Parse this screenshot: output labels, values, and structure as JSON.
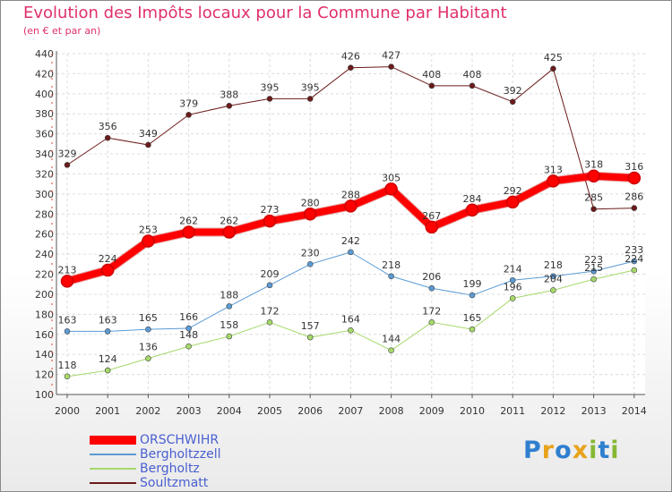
{
  "title": "Evolution des Impôts locaux pour la Commune par Habitant",
  "subtitle": "(en € et par an)",
  "logo": "Proxiti",
  "chart_data": {
    "type": "line",
    "x": [
      "2000",
      "2001",
      "2002",
      "2003",
      "2004",
      "2005",
      "2006",
      "2007",
      "2008",
      "2009",
      "2010",
      "2011",
      "2012",
      "2013",
      "2014"
    ],
    "ylim": [
      100,
      440
    ],
    "yticks": [
      100,
      120,
      140,
      160,
      180,
      200,
      220,
      240,
      260,
      280,
      300,
      320,
      340,
      360,
      380,
      400,
      420,
      440
    ],
    "grid": true,
    "legend": "bottom-left",
    "series": [
      {
        "name": "ORSCHWIHR",
        "color": "#ff0000",
        "width": 8,
        "values": [
          213,
          224,
          253,
          262,
          262,
          273,
          280,
          288,
          305,
          267,
          284,
          292,
          313,
          318,
          316
        ]
      },
      {
        "name": "Bergholtzzell",
        "color": "#5b9bd5",
        "width": 1,
        "values": [
          163,
          163,
          165,
          166,
          188,
          209,
          230,
          242,
          218,
          206,
          199,
          214,
          218,
          223,
          233
        ]
      },
      {
        "name": "Bergholtz",
        "color": "#a6d96a",
        "width": 1,
        "values": [
          118,
          124,
          136,
          148,
          158,
          172,
          157,
          164,
          144,
          172,
          165,
          196,
          204,
          215,
          224
        ]
      },
      {
        "name": "Soultzmatt",
        "color": "#6b1a1a",
        "width": 1,
        "values": [
          329,
          356,
          349,
          379,
          388,
          395,
          395,
          426,
          427,
          408,
          408,
          392,
          425,
          285,
          286
        ]
      }
    ]
  }
}
